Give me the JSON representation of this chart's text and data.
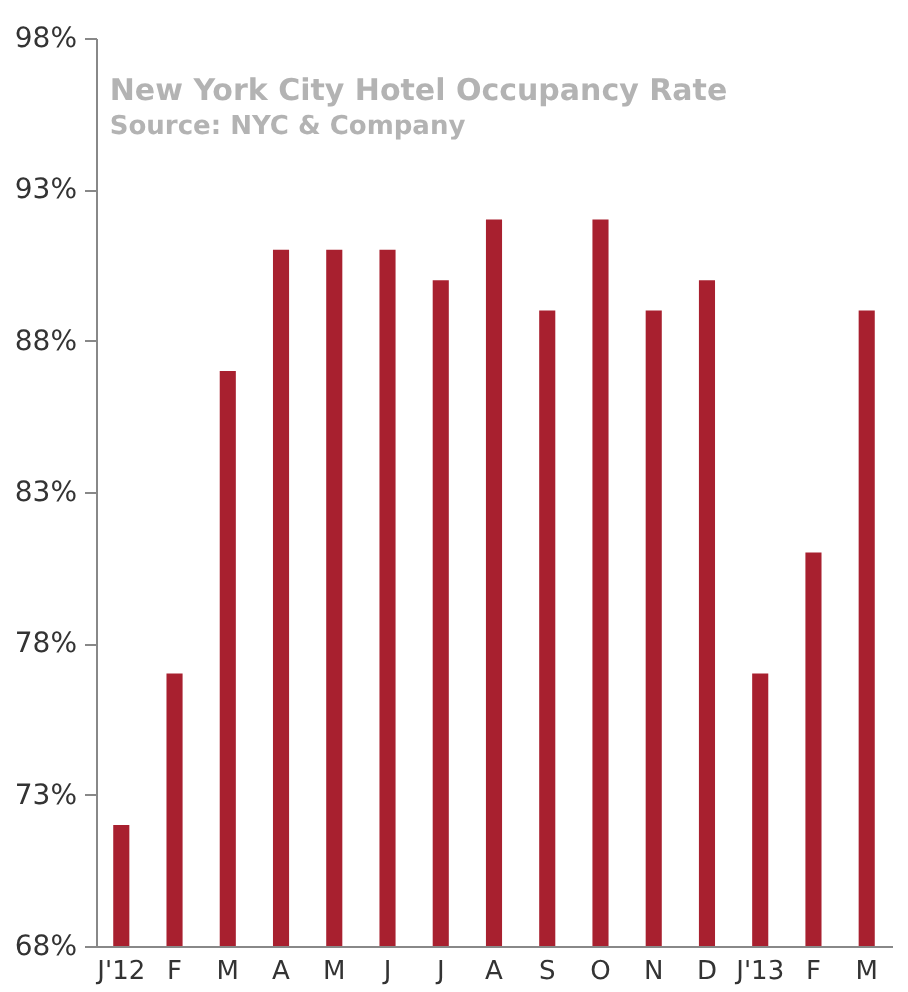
{
  "chart_data": {
    "type": "bar",
    "title": "New York City Hotel Occupancy Rate",
    "subtitle": "Source: NYC & Company",
    "categories": [
      "J'12",
      "F",
      "M",
      "A",
      "M",
      "J",
      "J",
      "A",
      "S",
      "O",
      "N",
      "D",
      "J'13",
      "F",
      "M"
    ],
    "values": [
      72,
      77,
      87,
      91,
      91,
      91,
      90,
      92,
      89,
      92,
      89,
      90,
      77,
      81,
      89
    ],
    "color": "#a8202f",
    "ylim": [
      68,
      98
    ],
    "yticks": [
      {
        "value": 68,
        "label": "68%"
      },
      {
        "value": 73,
        "label": "73%"
      },
      {
        "value": 78,
        "label": "78%"
      },
      {
        "value": 83,
        "label": "83%"
      },
      {
        "value": 88,
        "label": "88%"
      },
      {
        "value": 93,
        "label": "93%"
      },
      {
        "value": 98,
        "label": "98%"
      }
    ],
    "grid": false
  }
}
